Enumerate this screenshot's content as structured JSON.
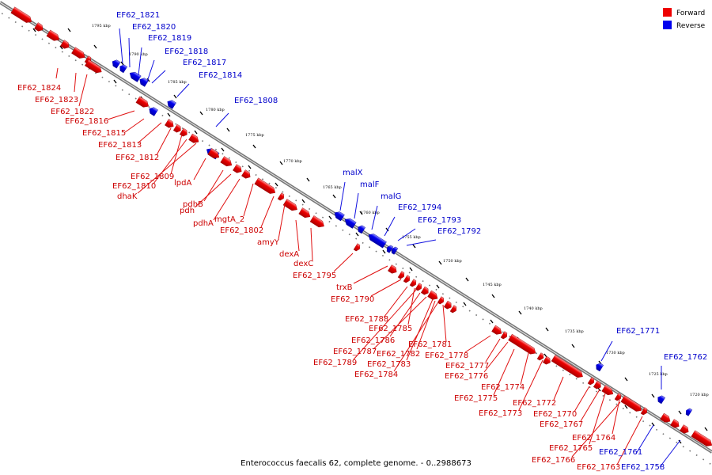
{
  "caption": "Enterococcus faecalis 62, complete genome. - 0..2988673",
  "legend": [
    {
      "label": "Forward",
      "color": "#ee0000"
    },
    {
      "label": "Reverse",
      "color": "#0000ee"
    }
  ],
  "colors": {
    "forward": "#ee0000",
    "reverse": "#0000ee",
    "forward_label": "#cc0000",
    "reverse_label": "#0000cc",
    "backbone": "#777777"
  },
  "kbp_ticks": [
    "1795 kbp",
    "1790 kbp",
    "1785 kbp",
    "1780 kbp",
    "1775 kbp",
    "1770 kbp",
    "1765 kbp",
    "1760 kbp",
    "1755 kbp",
    "1750 kbp",
    "1745 kbp",
    "1740 kbp",
    "1735 kbp",
    "1730 kbp",
    "1725 kbp",
    "1720 kbp"
  ],
  "forward_labels": [
    "EF62_1824",
    "EF62_1823",
    "EF62_1822",
    "EF62_1816",
    "EF62_1815",
    "EF62_1813",
    "EF62_1812",
    "EF62_1809",
    "EF62_1810",
    "dhaK",
    "lpdA",
    "pdhB",
    "pdh",
    "pdhA",
    "mgtA_2",
    "EF62_1802",
    "amyY",
    "dexA",
    "dexC",
    "EF62_1795",
    "trxB",
    "EF62_1790",
    "EF62_1788",
    "EF62_1785",
    "EF62_1786",
    "EF62_1787",
    "EF62_1782",
    "EF62_1781",
    "EF62_1789",
    "EF62_1783",
    "EF62_1784",
    "EF62_1778",
    "EF62_1777",
    "EF62_1776",
    "EF62_1774",
    "EF62_1775",
    "EF62_1772",
    "EF62_1773",
    "EF62_1770",
    "EF62_1767",
    "EF62_1764",
    "EF62_1765",
    "EF62_1766",
    "EF62_1763"
  ],
  "reverse_labels": [
    "EF62_1821",
    "EF62_1820",
    "EF62_1819",
    "EF62_1818",
    "EF62_1817",
    "EF62_1814",
    "EF62_1808",
    "malX",
    "malF",
    "malG",
    "EF62_1794",
    "EF62_1793",
    "EF62_1792",
    "EF62_1771",
    "EF62_1762",
    "EF62_1761",
    "EF62_1758"
  ]
}
